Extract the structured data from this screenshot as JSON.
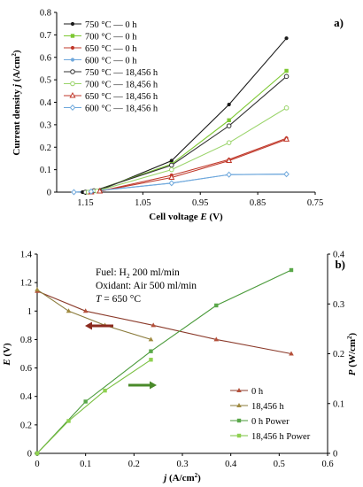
{
  "chart_data": [
    {
      "type": "line",
      "panel_label": "a)",
      "xlabel": "Cell voltage E (V)",
      "xlabel_parts": {
        "prefix": "Cell voltage ",
        "var": "E",
        "suffix": " (V)"
      },
      "ylabel": "Current density j (A/cm²)",
      "ylabel_parts": {
        "prefix": "Current density ",
        "var": "j",
        "suffix": " (A/cm",
        "sup": "2",
        "end": ")"
      },
      "xlim": [
        1.2,
        0.75
      ],
      "ylim": [
        0,
        0.8
      ],
      "x_axis_reversed": true,
      "x_ticks": [
        1.15,
        1.05,
        0.95,
        0.85,
        0.75
      ],
      "x_tick_labels": [
        "1.15",
        "1.05",
        "0.95",
        "0.85",
        "0.75"
      ],
      "y_ticks": [
        0,
        0.1,
        0.2,
        0.3,
        0.4,
        0.5,
        0.6,
        0.7,
        0.8
      ],
      "y_tick_labels": [
        "0",
        "0.1",
        "0.2",
        "0.3",
        "0.4",
        "0.5",
        "0.6",
        "0.7",
        "0.8"
      ],
      "grid": false,
      "legend_position": "top-left",
      "series": [
        {
          "name": "750 °C — 0 h",
          "color": "#1a1a1a",
          "marker": "dot",
          "x": [
            1.155,
            1.14,
            1.125,
            1.0,
            0.9,
            0.8
          ],
          "y": [
            0,
            0.005,
            0.008,
            0.14,
            0.39,
            0.685
          ]
        },
        {
          "name": "700 °C — 0 h",
          "color": "#7dc832",
          "marker": "square",
          "x": [
            1.15,
            1.135,
            1.0,
            0.9,
            0.8
          ],
          "y": [
            0,
            0.005,
            0.125,
            0.32,
            0.54
          ]
        },
        {
          "name": "650 °C — 0 h",
          "color": "#c0392b",
          "marker": "dot",
          "x": [
            1.14,
            1.125,
            1.0,
            0.9,
            0.8
          ],
          "y": [
            0,
            0.004,
            0.075,
            0.145,
            0.24
          ]
        },
        {
          "name": "600 °C — 0 h",
          "color": "#6fa8dc",
          "marker": "dot",
          "x": [
            1.17,
            1.14,
            1.0,
            0.9,
            0.8
          ],
          "y": [
            0,
            0.003,
            0.04,
            0.078,
            0.08
          ]
        },
        {
          "name": "750 °C — 18,456 h",
          "color": "#333333",
          "marker": "open-circle",
          "x": [
            1.15,
            1.135,
            1.0,
            0.9,
            0.8
          ],
          "y": [
            0,
            0.006,
            0.12,
            0.295,
            0.515
          ]
        },
        {
          "name": "700 °C — 18,456 h",
          "color": "#9ad46a",
          "marker": "open-circle",
          "x": [
            1.145,
            1.13,
            1.0,
            0.9,
            0.8
          ],
          "y": [
            0,
            0.005,
            0.1,
            0.22,
            0.375
          ]
        },
        {
          "name": "650 °C — 18,456 h",
          "color": "#c0392b",
          "marker": "open-triangle",
          "x": [
            1.14,
            1.125,
            1.0,
            0.9,
            0.8
          ],
          "y": [
            0,
            0.004,
            0.065,
            0.14,
            0.235
          ]
        },
        {
          "name": "600 °C — 18,456 h",
          "color": "#6fa8dc",
          "marker": "open-diamond",
          "x": [
            1.17,
            1.14,
            1.0,
            0.9,
            0.8
          ],
          "y": [
            0,
            0.003,
            0.04,
            0.078,
            0.08
          ]
        }
      ]
    },
    {
      "type": "line",
      "panel_label": "b)",
      "xlabel": "j (A/cm²)",
      "xlabel_parts": {
        "var": "j",
        "suffix": " (A/cm",
        "sup": "2",
        "end": ")"
      },
      "ylabel_left": "E (V)",
      "ylabel_left_parts": {
        "var": "E",
        "suffix": " (V)"
      },
      "ylabel_right": "P (W/cm²)",
      "ylabel_right_parts": {
        "var": "P",
        "suffix": " (W/cm",
        "sup": "2",
        "end": ")"
      },
      "xlim": [
        0,
        0.6
      ],
      "ylim_left": [
        0,
        1.4
      ],
      "ylim_right": [
        0,
        0.4
      ],
      "x_ticks": [
        0,
        0.1,
        0.2,
        0.3,
        0.4,
        0.5,
        0.6
      ],
      "x_tick_labels": [
        "0",
        "0.1",
        "0.2",
        "0.3",
        "0.4",
        "0.5",
        "0.6"
      ],
      "y_left_ticks": [
        0,
        0.2,
        0.4,
        0.6,
        0.8,
        1,
        1.2,
        1.4
      ],
      "y_left_tick_labels": [
        "0",
        "0.2",
        "0.4",
        "0.6",
        "0.8",
        "1",
        "1.2",
        "1.4"
      ],
      "y_right_ticks": [
        0,
        0.1,
        0.2,
        0.3,
        0.4
      ],
      "y_right_tick_labels": [
        "0",
        "0.1",
        "0.2",
        "0.3",
        "0.4"
      ],
      "grid": false,
      "legend_position": "bottom-right",
      "annotation": {
        "fuel": {
          "prefix": "Fuel: H",
          "sub": "2",
          "suffix": " 200 ml/min"
        },
        "oxidant": "Oxidant: Air 500 ml/min",
        "temperature": {
          "var": "T",
          "suffix": " = 650 °C"
        }
      },
      "arrows": [
        {
          "direction": "left",
          "color": "#8b2a1e",
          "points_to_axis": "left"
        },
        {
          "direction": "right",
          "color": "#4a8a2a",
          "points_to_axis": "right"
        }
      ],
      "series": [
        {
          "name": "0 h",
          "axis": "left",
          "color": "#b5503a",
          "line_color": "#8b3a2a",
          "marker": "triangle",
          "x": [
            0,
            0.1,
            0.24,
            0.37,
            0.525
          ],
          "y": [
            1.14,
            1.0,
            0.9,
            0.8,
            0.7
          ]
        },
        {
          "name": "18,456 h",
          "axis": "left",
          "color": "#a08a40",
          "line_color": "#8a7a3a",
          "marker": "triangle",
          "x": [
            0,
            0.065,
            0.14,
            0.235
          ],
          "y": [
            1.15,
            1.0,
            0.9,
            0.8
          ]
        },
        {
          "name": "0 h Power",
          "axis": "right",
          "color": "#5aa84a",
          "line_color": "#4a9a3a",
          "marker": "square",
          "x": [
            0,
            0.1,
            0.235,
            0.37,
            0.525
          ],
          "y": [
            0,
            0.104,
            0.205,
            0.297,
            0.368
          ]
        },
        {
          "name": "18,456 h Power",
          "axis": "right",
          "color": "#8fd150",
          "line_color": "#7bc043",
          "marker": "square",
          "x": [
            0,
            0.065,
            0.14,
            0.235
          ],
          "y": [
            0,
            0.065,
            0.126,
            0.188
          ]
        }
      ]
    }
  ]
}
